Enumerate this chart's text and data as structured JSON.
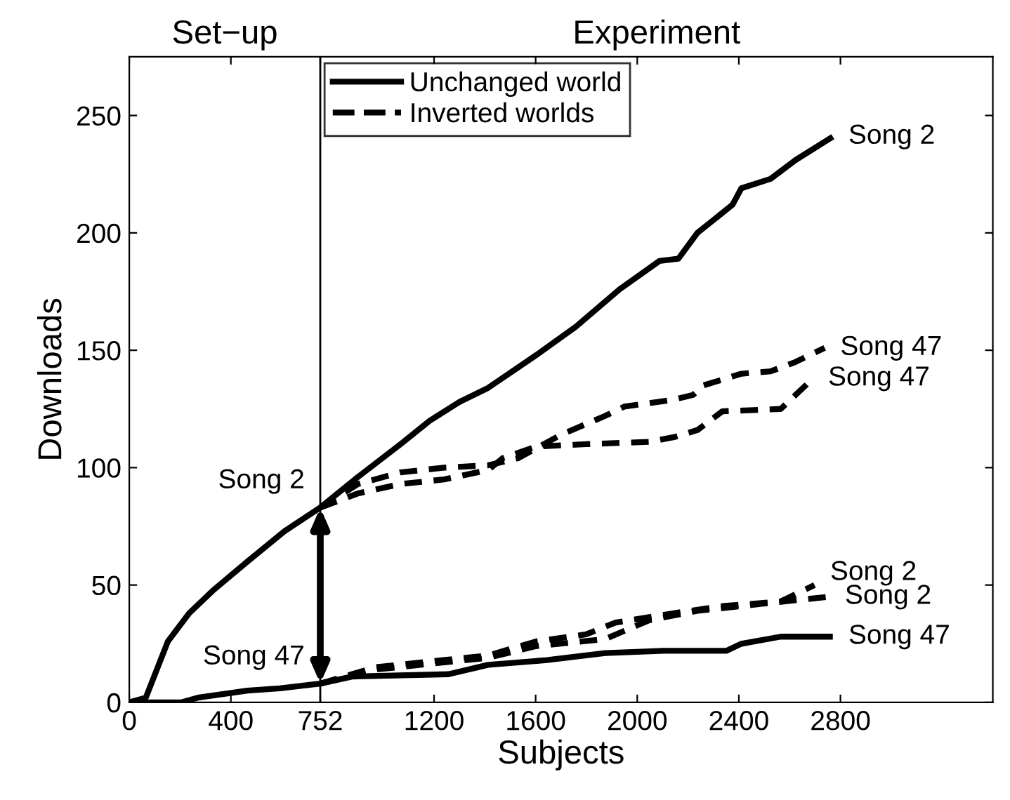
{
  "chart_data": {
    "type": "line",
    "xlabel": "Subjects",
    "ylabel": "Downloads",
    "xlim": [
      0,
      3400
    ],
    "xticks": [
      0,
      400,
      752,
      1200,
      1600,
      2000,
      2400,
      2800
    ],
    "ylim": [
      0,
      275
    ],
    "yticks": [
      0,
      50,
      100,
      150,
      200,
      250
    ],
    "grid": false,
    "legend": "top left",
    "marker": "none",
    "ref_lines": [
      {
        "axis": "x",
        "value": 752,
        "color": "#000000"
      }
    ],
    "series": [
      {
        "name": "Unchanged world",
        "color": "#000000",
        "line_style": "solid",
        "x": [
          0,
          65,
          152,
          236,
          333,
          465,
          612,
          752,
          900,
          1068,
          1183,
          1300,
          1413,
          1603,
          1758,
          1931,
          2087,
          2162,
          2237,
          2375,
          2410,
          2525,
          2623,
          2770
        ],
        "values": [
          0,
          2,
          26,
          38,
          48,
          60,
          73,
          83,
          96,
          110,
          120,
          128,
          134,
          148,
          160,
          176,
          188,
          189,
          200,
          212,
          219,
          223,
          231,
          241
        ]
      },
      {
        "color": "#000000",
        "line_style": "solid",
        "x": [
          0,
          203,
          270,
          465,
          593,
          752,
          877,
          1257,
          1413,
          1644,
          1874,
          2104,
          2352,
          2410,
          2565,
          2770
        ],
        "values": [
          0,
          0,
          2,
          5,
          6,
          8,
          11,
          12,
          16,
          18,
          21,
          22,
          22,
          25,
          28,
          28
        ]
      },
      {
        "name": "Inverted worlds",
        "color": "#000000",
        "line_style": "dashed",
        "x": [
          752,
          900,
          1068,
          1240,
          1413,
          1530,
          1700,
          1873,
          1949,
          2145,
          2220,
          2260,
          2410,
          2525,
          2623,
          2738
        ],
        "values": [
          83,
          93,
          98,
          100,
          101,
          104,
          114,
          122,
          126,
          129,
          131,
          135,
          140,
          141,
          145,
          151
        ]
      },
      {
        "color": "#000000",
        "line_style": "dashed",
        "x": [
          752,
          900,
          1068,
          1240,
          1413,
          1470,
          1603,
          1799,
          2047,
          2145,
          2237,
          2335,
          2565,
          2663,
          2690
        ],
        "values": [
          83,
          89,
          93,
          95,
          99,
          104,
          109,
          110,
          111,
          113,
          116,
          124,
          125,
          135,
          138
        ]
      },
      {
        "color": "#000000",
        "line_style": "dashed",
        "x": [
          752,
          970,
          1413,
          1603,
          1799,
          1915,
          2145,
          2335,
          2565,
          2698
        ],
        "values": [
          8,
          15,
          20,
          26,
          29,
          34,
          38,
          41,
          43,
          50
        ]
      },
      {
        "color": "#000000",
        "line_style": "dashed",
        "x": [
          752,
          970,
          1413,
          1603,
          1874,
          2047,
          2237,
          2490,
          2756
        ],
        "values": [
          8,
          14,
          19,
          24,
          27,
          35,
          39,
          42,
          45
        ]
      }
    ],
    "annotations": [
      "Set−up",
      "Experiment",
      {
        "text": "Song 2",
        "x": 752,
        "y": 83
      },
      {
        "text": "Song 47",
        "x": 752,
        "y": 8
      },
      {
        "text": "Song 2",
        "x": 2770,
        "y": 241
      },
      {
        "text": "Song 47",
        "x": 2738,
        "y": 151
      },
      {
        "text": "Song 47",
        "x": 2690,
        "y": 138
      },
      {
        "text": "Song 2",
        "x": 2698,
        "y": 50
      },
      {
        "text": "Song 2",
        "x": 2756,
        "y": 45
      },
      {
        "text": "Song 47",
        "x": 2770,
        "y": 28
      }
    ]
  }
}
